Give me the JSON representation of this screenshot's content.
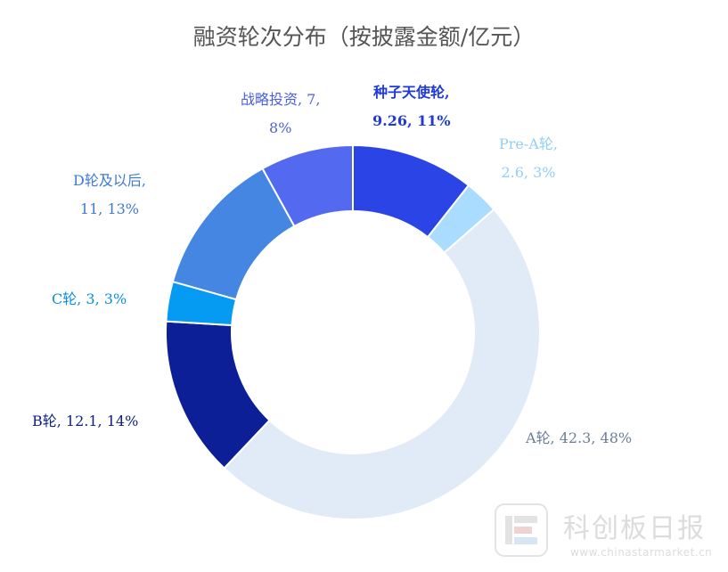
{
  "chart_data": {
    "type": "pie",
    "title": "融资轮次分布（按披露金额/亿元）",
    "donut": true,
    "slices": [
      {
        "name": "种子天使轮",
        "value": 9.26,
        "percent": "11%",
        "color": "#2b44e6",
        "label_line1": "种子天使轮,",
        "label_line2": "9.26, 11%",
        "label_color": "#1f3ad6"
      },
      {
        "name": "Pre-A轮",
        "value": 2.6,
        "percent": "3%",
        "color": "#a9dcff",
        "label_line1": "Pre-A轮,",
        "label_line2": "2.6, 3%",
        "label_color": "#8fd0f5"
      },
      {
        "name": "A轮",
        "value": 42.3,
        "percent": "48%",
        "color": "#e1ebf8",
        "label_line1": "A轮, 42.3, 48%",
        "label_line2": "",
        "label_color": "#6a7f96"
      },
      {
        "name": "B轮",
        "value": 12.1,
        "percent": "14%",
        "color": "#0c1f96",
        "label_line1": "B轮, 12.1, 14%",
        "label_line2": "",
        "label_color": "#0c1f82"
      },
      {
        "name": "C轮",
        "value": 3,
        "percent": "3%",
        "color": "#069bf2",
        "label_line1": "C轮, 3, 3%",
        "label_line2": "",
        "label_color": "#0a8ee0"
      },
      {
        "name": "D轮及以后",
        "value": 11,
        "percent": "13%",
        "color": "#4486e2",
        "label_line1": "D轮及以后,",
        "label_line2": "11, 13%",
        "label_color": "#3e7ad6"
      },
      {
        "name": "战略投资",
        "value": 7,
        "percent": "8%",
        "color": "#5369f0",
        "label_line1": "战略投资, 7,",
        "label_line2": "8%",
        "label_color": "#4a5fe0"
      }
    ],
    "legend": "none"
  },
  "watermark": {
    "name": "科创板日报",
    "url": "www.chinastarmarket.cn"
  }
}
